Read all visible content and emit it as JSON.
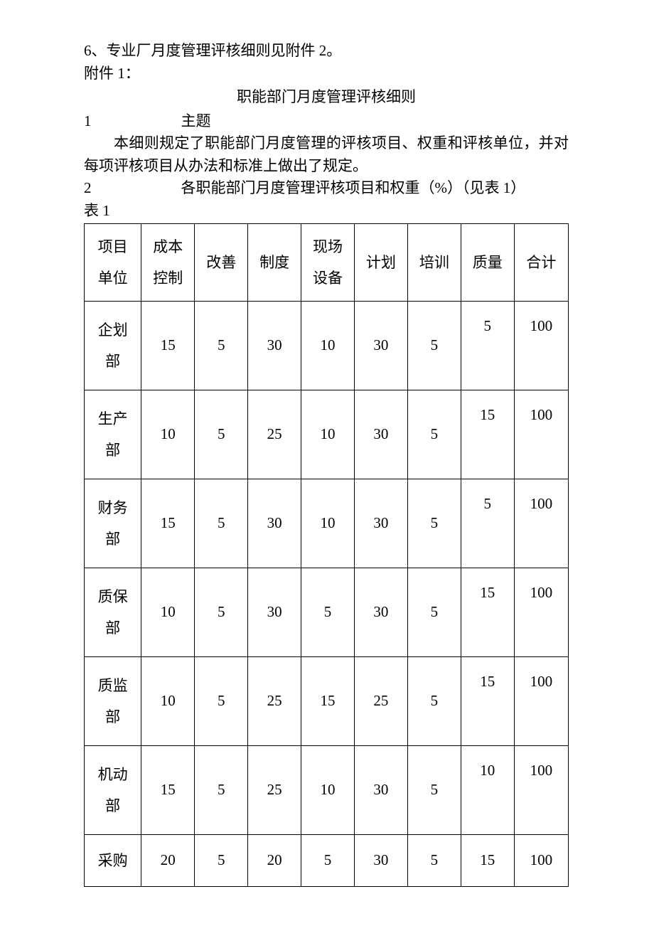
{
  "intro": {
    "line6": "6、专业厂月度管理评核细则见附件 2。",
    "attachment": "附件 1：",
    "title": "职能部门月度管理评核细则",
    "sec1_num": "1",
    "sec1_title": "主题",
    "sec1_body": "本细则规定了职能部门月度管理的评核项目、权重和评核单位，并对每项评核项目从办法和标准上做出了规定。",
    "sec2_num": "2",
    "sec2_title": "各职能部门月度管理评核项目和权重（%）（见表 1）",
    "table_label": "表 1"
  },
  "table": {
    "type": "table",
    "border_color": "#000000",
    "background_color": "#ffffff",
    "text_color": "#000000",
    "font_size_pt": 16,
    "columns": [
      {
        "l1": "项目",
        "l2": "单位"
      },
      {
        "l1": "成本",
        "l2": "控制"
      },
      {
        "l1": "改善",
        "l2": ""
      },
      {
        "l1": "制度",
        "l2": ""
      },
      {
        "l1": "现场",
        "l2": "设备"
      },
      {
        "l1": "计划",
        "l2": ""
      },
      {
        "l1": "培训",
        "l2": ""
      },
      {
        "l1": "质量",
        "l2": ""
      },
      {
        "l1": "合计",
        "l2": ""
      }
    ],
    "rows": [
      {
        "name_l1": "企划",
        "name_l2": "部",
        "v": [
          "15",
          "5",
          "30",
          "10",
          "30",
          "5",
          "5",
          "100"
        ]
      },
      {
        "name_l1": "生产",
        "name_l2": "部",
        "v": [
          "10",
          "5",
          "25",
          "10",
          "30",
          "5",
          "15",
          "100"
        ]
      },
      {
        "name_l1": "财务",
        "name_l2": "部",
        "v": [
          "15",
          "5",
          "30",
          "10",
          "30",
          "5",
          "5",
          "100"
        ]
      },
      {
        "name_l1": "质保",
        "name_l2": "部",
        "v": [
          "10",
          "5",
          "30",
          "5",
          "30",
          "5",
          "15",
          "100"
        ]
      },
      {
        "name_l1": "质监",
        "name_l2": "部",
        "v": [
          "10",
          "5",
          "25",
          "15",
          "25",
          "5",
          "15",
          "100"
        ]
      },
      {
        "name_l1": "机动",
        "name_l2": "部",
        "v": [
          "15",
          "5",
          "25",
          "10",
          "30",
          "5",
          "10",
          "100"
        ]
      },
      {
        "name_l1": "采购",
        "name_l2": "",
        "v": [
          "20",
          "5",
          "20",
          "5",
          "30",
          "5",
          "15",
          "100"
        ]
      }
    ]
  }
}
